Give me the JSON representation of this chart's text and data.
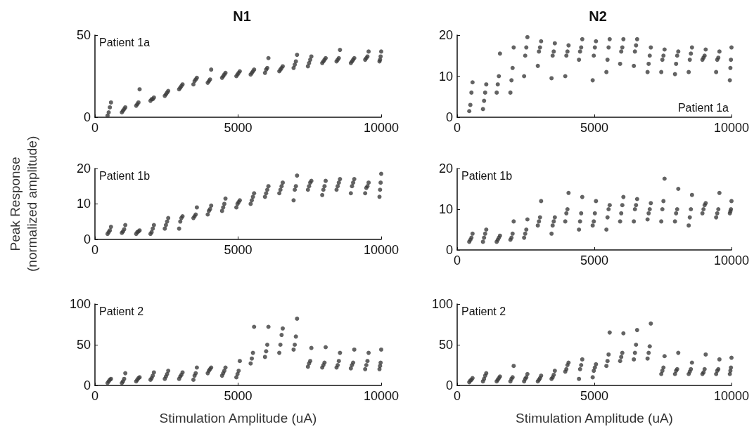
{
  "chart_data": [
    {
      "type": "scatter",
      "title": "N1",
      "annotations": [
        "Patient 1a"
      ],
      "color": "#3c3c3c",
      "marker": "circle",
      "xlim": [
        0,
        10000
      ],
      "xticks": [
        0,
        5000,
        10000
      ],
      "ylim": [
        0,
        50
      ],
      "yticks": [
        0,
        50
      ],
      "x": [
        440,
        480,
        520,
        560,
        940,
        980,
        1020,
        1060,
        1440,
        1480,
        1520,
        1560,
        1940,
        1980,
        2020,
        2060,
        2440,
        2480,
        2520,
        2560,
        2940,
        2980,
        3020,
        3060,
        3440,
        3480,
        3520,
        3560,
        3940,
        3980,
        4020,
        4060,
        4440,
        4480,
        4520,
        4560,
        4940,
        4980,
        5020,
        5060,
        5440,
        5480,
        5520,
        5560,
        5940,
        5980,
        6020,
        6060,
        6440,
        6480,
        6520,
        6560,
        6940,
        6980,
        7020,
        7060,
        7440,
        7480,
        7520,
        7560,
        7940,
        7980,
        8020,
        8060,
        8440,
        8480,
        8520,
        8560,
        8940,
        8980,
        9020,
        9060,
        9440,
        9480,
        9520,
        9560,
        9940,
        9960,
        9980,
        10000
      ],
      "values": [
        1,
        3,
        6,
        9,
        3,
        4,
        5,
        6,
        7,
        8,
        9,
        17,
        10,
        11,
        11,
        12,
        13,
        14,
        15,
        16,
        17,
        18,
        19,
        20,
        20,
        22,
        23,
        24,
        21,
        22,
        23,
        29,
        24,
        25,
        26,
        27,
        25,
        26,
        27,
        28,
        26,
        27,
        28,
        29,
        27,
        29,
        30,
        36,
        28,
        29,
        30,
        31,
        30,
        32,
        34,
        38,
        31,
        33,
        35,
        37,
        33,
        34,
        35,
        36,
        34,
        35,
        36,
        41,
        33,
        34,
        35,
        36,
        35,
        36,
        37,
        40,
        34,
        35,
        37,
        40
      ]
    },
    {
      "type": "scatter",
      "title": "N2",
      "annotations": [
        "Patient 1a"
      ],
      "color": "#3c3c3c",
      "marker": "circle",
      "xlim": [
        0,
        10000
      ],
      "xticks": [
        0,
        5000,
        10000
      ],
      "ylim": [
        0,
        20
      ],
      "yticks": [
        0,
        10,
        20
      ],
      "x": [
        440,
        480,
        520,
        560,
        940,
        980,
        1020,
        1060,
        1440,
        1480,
        1520,
        1560,
        1940,
        1980,
        2020,
        2060,
        2440,
        2480,
        2520,
        2560,
        2940,
        2980,
        3020,
        3060,
        3440,
        3480,
        3520,
        3560,
        3940,
        3980,
        4020,
        4060,
        4440,
        4480,
        4520,
        4560,
        4940,
        4980,
        5020,
        5060,
        5440,
        5480,
        5520,
        5560,
        5940,
        5980,
        6020,
        6060,
        6440,
        6480,
        6520,
        6560,
        6940,
        6980,
        7020,
        7060,
        7440,
        7480,
        7520,
        7560,
        7940,
        7980,
        8020,
        8060,
        8440,
        8480,
        8520,
        8560,
        8940,
        8980,
        9020,
        9060,
        9440,
        9480,
        9520,
        9560,
        9940,
        9960,
        9980,
        10000
      ],
      "values": [
        1.5,
        3,
        6,
        8.5,
        2,
        4,
        6,
        8,
        6,
        8,
        10,
        15.5,
        6,
        9,
        12,
        17,
        10,
        15,
        17,
        19.5,
        12.5,
        16,
        17,
        18.5,
        9.5,
        15,
        16,
        18,
        10,
        15,
        16,
        17.5,
        14,
        16,
        17,
        19,
        9,
        15,
        17,
        18.5,
        11,
        14,
        17,
        19,
        13,
        16,
        17,
        19,
        12.5,
        16,
        17.5,
        19,
        11,
        13,
        15,
        17,
        11,
        14,
        15,
        16.5,
        10.5,
        13,
        15,
        16,
        11,
        14,
        15.5,
        17,
        14,
        14.5,
        15,
        16.5,
        11,
        14,
        14.5,
        16,
        9,
        12,
        14,
        17
      ]
    },
    {
      "type": "scatter",
      "annotations": [
        "Patient 1b"
      ],
      "ylabel": "Peak Response\n(normalized amplitude)",
      "color": "#3c3c3c",
      "marker": "circle",
      "xlim": [
        0,
        10000
      ],
      "xticks": [
        0,
        5000,
        10000
      ],
      "ylim": [
        0,
        20
      ],
      "yticks": [
        0,
        10,
        20
      ],
      "x": [
        440,
        480,
        520,
        560,
        940,
        980,
        1020,
        1060,
        1440,
        1480,
        1520,
        1560,
        1940,
        1980,
        2020,
        2060,
        2440,
        2480,
        2520,
        2560,
        2940,
        2980,
        3020,
        3060,
        3440,
        3480,
        3520,
        3560,
        3940,
        3980,
        4020,
        4060,
        4440,
        4480,
        4520,
        4560,
        4940,
        4980,
        5020,
        5060,
        5440,
        5480,
        5520,
        5560,
        5940,
        5980,
        6020,
        6060,
        6440,
        6480,
        6520,
        6560,
        6940,
        6980,
        7020,
        7060,
        7440,
        7480,
        7520,
        7560,
        7940,
        7980,
        8020,
        8060,
        8440,
        8480,
        8520,
        8560,
        8940,
        8980,
        9020,
        9060,
        9440,
        9480,
        9520,
        9560,
        9940,
        9960,
        9980,
        10000
      ],
      "values": [
        1.5,
        2,
        2.5,
        3.5,
        1.8,
        2.2,
        2.8,
        4,
        1.5,
        2,
        2.2,
        2.5,
        1.5,
        2,
        3,
        4,
        3,
        4,
        5,
        6,
        3,
        5,
        6,
        6.5,
        6,
        6.5,
        7,
        9,
        7,
        8,
        8.5,
        9.5,
        8,
        9,
        10,
        11.5,
        9,
        10,
        10.5,
        11,
        10,
        11,
        12,
        13,
        12,
        13,
        14,
        15,
        13,
        14,
        15,
        16,
        11,
        14,
        15,
        18,
        14,
        15,
        16,
        16.5,
        12.5,
        14,
        15,
        16.5,
        14,
        15,
        16,
        17,
        13,
        15,
        16,
        17,
        13,
        14.5,
        15,
        16,
        12,
        14,
        16,
        18.5
      ]
    },
    {
      "type": "scatter",
      "annotations": [
        "Patient 1b"
      ],
      "color": "#3c3c3c",
      "marker": "circle",
      "xlim": [
        0,
        10000
      ],
      "xticks": [
        0,
        5000,
        10000
      ],
      "ylim": [
        0,
        20
      ],
      "yticks": [
        0,
        10,
        20
      ],
      "x": [
        440,
        480,
        520,
        560,
        940,
        980,
        1020,
        1060,
        1440,
        1480,
        1520,
        1560,
        1940,
        1980,
        2020,
        2060,
        2440,
        2480,
        2520,
        2560,
        2940,
        2980,
        3020,
        3060,
        3440,
        3480,
        3520,
        3560,
        3940,
        3980,
        4020,
        4060,
        4440,
        4480,
        4520,
        4560,
        4940,
        4980,
        5020,
        5060,
        5440,
        5480,
        5520,
        5560,
        5940,
        5980,
        6020,
        6060,
        6440,
        6480,
        6520,
        6560,
        6940,
        6980,
        7020,
        7060,
        7440,
        7480,
        7520,
        7560,
        7940,
        7980,
        8020,
        8060,
        8440,
        8480,
        8520,
        8560,
        8940,
        8980,
        9020,
        9060,
        9440,
        9480,
        9520,
        9560,
        9940,
        9960,
        9980,
        10000
      ],
      "values": [
        2,
        2.5,
        3,
        4,
        2,
        3,
        4,
        5,
        2,
        2.5,
        3,
        3.5,
        2.5,
        3,
        4,
        7,
        3,
        4,
        5,
        7.5,
        6,
        7,
        8,
        12,
        4,
        6,
        7,
        8,
        7,
        9,
        10,
        14,
        5,
        7,
        9,
        13,
        6,
        7,
        9,
        12,
        5,
        8,
        10,
        11,
        7,
        9,
        11,
        13,
        7,
        10,
        11,
        12.5,
        7.5,
        9,
        10,
        11.5,
        7,
        10,
        12,
        17.5,
        7,
        9,
        10,
        15,
        6,
        8,
        10,
        13.5,
        9,
        10,
        11,
        11.5,
        8,
        9,
        10,
        14,
        9,
        9.5,
        10,
        12
      ]
    },
    {
      "type": "scatter",
      "annotations": [
        "Patient 2"
      ],
      "xlabel": "Stimulation Amplitude (uA)",
      "color": "#3c3c3c",
      "marker": "circle",
      "xlim": [
        0,
        10000
      ],
      "xticks": [
        0,
        5000,
        10000
      ],
      "ylim": [
        0,
        100
      ],
      "yticks": [
        0,
        50,
        100
      ],
      "x": [
        440,
        480,
        520,
        560,
        940,
        980,
        1020,
        1060,
        1440,
        1480,
        1520,
        1560,
        1940,
        1980,
        2020,
        2060,
        2440,
        2480,
        2520,
        2560,
        2940,
        2980,
        3020,
        3060,
        3440,
        3480,
        3520,
        3560,
        3940,
        3980,
        4020,
        4060,
        4440,
        4480,
        4520,
        4560,
        4940,
        4980,
        5020,
        5060,
        5440,
        5480,
        5520,
        5560,
        5940,
        5980,
        6020,
        6060,
        6440,
        6480,
        6520,
        6560,
        6940,
        6980,
        7020,
        7060,
        7440,
        7480,
        7520,
        7560,
        7940,
        7980,
        8020,
        8060,
        8440,
        8480,
        8520,
        8560,
        8940,
        8980,
        9020,
        9060,
        9440,
        9480,
        9520,
        9560,
        9940,
        9960,
        9980,
        10000
      ],
      "values": [
        3,
        5,
        7,
        8,
        3,
        5,
        8,
        15,
        5,
        7,
        9,
        10,
        7,
        9,
        12,
        16,
        8,
        11,
        14,
        18,
        8,
        11,
        13,
        16,
        7,
        12,
        15,
        22,
        15,
        18,
        20,
        22,
        12,
        15,
        18,
        22,
        10,
        14,
        18,
        30,
        27,
        33,
        40,
        72,
        35,
        42,
        50,
        72,
        40,
        50,
        62,
        70,
        44,
        50,
        60,
        82,
        23,
        27,
        30,
        46,
        22,
        25,
        28,
        47,
        22,
        25,
        30,
        40,
        21,
        25,
        28,
        44,
        20,
        25,
        30,
        40,
        20,
        24,
        28,
        44
      ]
    },
    {
      "type": "scatter",
      "annotations": [
        "Patient 2"
      ],
      "xlabel": "Stimulation Amplitude (uA)",
      "color": "#3c3c3c",
      "marker": "circle",
      "xlim": [
        0,
        10000
      ],
      "xticks": [
        0,
        5000,
        10000
      ],
      "ylim": [
        0,
        100
      ],
      "yticks": [
        0,
        50,
        100
      ],
      "x": [
        440,
        480,
        520,
        560,
        940,
        980,
        1020,
        1060,
        1440,
        1480,
        1520,
        1560,
        1940,
        1980,
        2020,
        2060,
        2440,
        2480,
        2520,
        2560,
        2940,
        2980,
        3020,
        3060,
        3440,
        3480,
        3520,
        3560,
        3940,
        3980,
        4020,
        4060,
        4440,
        4480,
        4520,
        4560,
        4940,
        4980,
        5020,
        5060,
        5440,
        5480,
        5520,
        5560,
        5940,
        5980,
        6020,
        6060,
        6440,
        6480,
        6520,
        6560,
        6940,
        6980,
        7020,
        7060,
        7440,
        7480,
        7520,
        7560,
        7940,
        7980,
        8020,
        8060,
        8440,
        8480,
        8520,
        8560,
        8940,
        8980,
        9020,
        9060,
        9440,
        9480,
        9520,
        9560,
        9940,
        9960,
        9980,
        10000
      ],
      "values": [
        4,
        6,
        7,
        9,
        5,
        8,
        12,
        15,
        5,
        7,
        9,
        11,
        5,
        8,
        10,
        24,
        5,
        8,
        10,
        14,
        5,
        7,
        9,
        12,
        8,
        10,
        13,
        18,
        17,
        20,
        25,
        28,
        8,
        20,
        25,
        32,
        10,
        18,
        22,
        26,
        24,
        30,
        38,
        65,
        30,
        35,
        40,
        64,
        32,
        40,
        50,
        68,
        33,
        40,
        48,
        76,
        14,
        18,
        22,
        36,
        14,
        18,
        20,
        40,
        14,
        17,
        20,
        28,
        14,
        16,
        20,
        38,
        14,
        18,
        20,
        32,
        14,
        18,
        22,
        34
      ]
    }
  ]
}
